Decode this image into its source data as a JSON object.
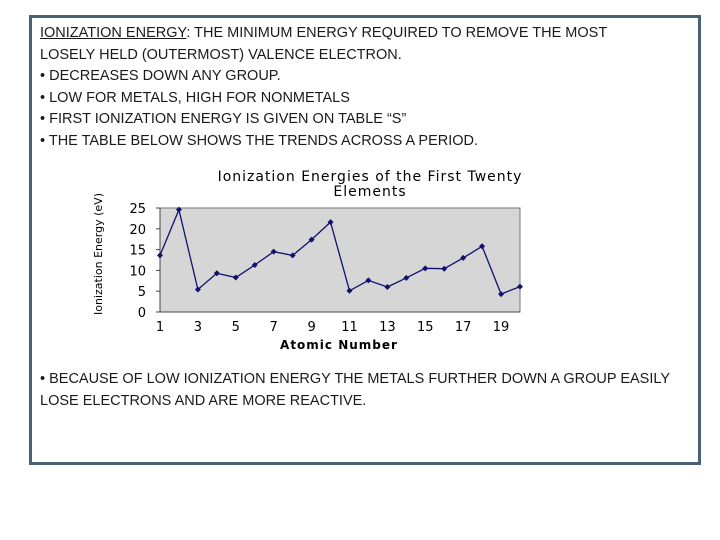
{
  "header": {
    "term": "IONIZATION ENERGY",
    "definition": ": THE MINIMUM ENERGY REQUIRED TO REMOVE THE MOST",
    "definition_cont": "LOSELY HELD (OUTERMOST) VALENCE ELECTRON.",
    "bullets": [
      "• DECREASES DOWN ANY GROUP.",
      "• LOW FOR METALS, HIGH FOR NONMETALS",
      "• FIRST IONIZATION ENERGY IS GIVEN ON TABLE “S”",
      "• THE TABLE BELOW SHOWS THE TRENDS ACROSS A PERIOD."
    ]
  },
  "footer": {
    "line1": "• BECAUSE OF LOW IONIZATION ENERGY THE METALS FURTHER DOWN A GROUP EASILY",
    "line2": "LOSE ELECTRONS AND ARE MORE REACTIVE."
  },
  "chart_data": {
    "type": "line",
    "title_line1": "Ionization Energies of the First Twenty",
    "title_line2": "Elements",
    "xlabel": "Atomic Number",
    "ylabel": "Ionization Energy (eV)",
    "x": [
      1,
      2,
      3,
      4,
      5,
      6,
      7,
      8,
      9,
      10,
      11,
      12,
      13,
      14,
      15,
      16,
      17,
      18,
      19,
      20
    ],
    "values": [
      13.6,
      24.6,
      5.4,
      9.3,
      8.3,
      11.3,
      14.5,
      13.6,
      17.4,
      21.6,
      5.1,
      7.6,
      6.0,
      8.2,
      10.5,
      10.4,
      13.0,
      15.8,
      4.3,
      6.1
    ],
    "x_ticks": [
      "1",
      "3",
      "5",
      "7",
      "9",
      "11",
      "13",
      "15",
      "17",
      "19"
    ],
    "x_tick_values": [
      1,
      3,
      5,
      7,
      9,
      11,
      13,
      15,
      17,
      19
    ],
    "y_ticks": [
      "0",
      "5",
      "10",
      "15",
      "20",
      "25"
    ],
    "y_tick_values": [
      0,
      5,
      10,
      15,
      20,
      25
    ],
    "xlim": [
      1,
      20
    ],
    "ylim": [
      0,
      25
    ],
    "grid": false,
    "plot_background": "#d6d6d6",
    "line_color": "#10106e",
    "marker": "diamond"
  }
}
